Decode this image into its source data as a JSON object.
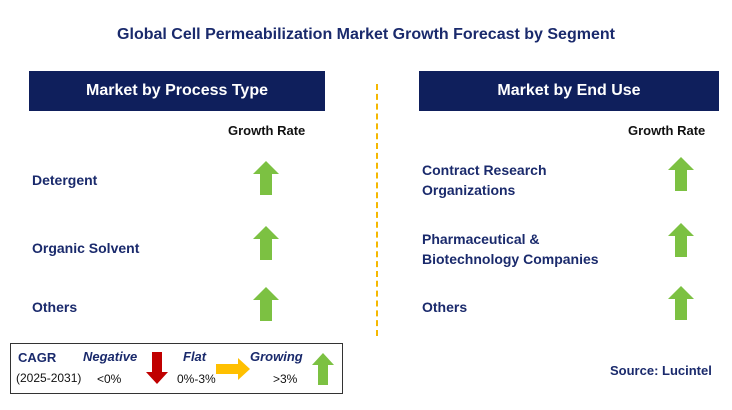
{
  "title": "Global Cell Permeabilization Market Growth Forecast by Segment",
  "colors": {
    "header_bg": "#0f1f5c",
    "text": "#1a2a6c",
    "up_arrow": "#7cc142",
    "down_arrow": "#c00000",
    "flat_arrow": "#ffc000",
    "divider": "#f5b800"
  },
  "left_panel": {
    "header": "Market by Process Type",
    "growth_label": "Growth Rate",
    "rows": [
      {
        "label": "Detergent",
        "trend": "growing"
      },
      {
        "label": "Organic Solvent",
        "trend": "growing"
      },
      {
        "label": "Others",
        "trend": "growing"
      }
    ]
  },
  "right_panel": {
    "header": "Market by End Use",
    "growth_label": "Growth Rate",
    "rows": [
      {
        "label_line1": "Contract Research",
        "label_line2": "Organizations",
        "trend": "growing"
      },
      {
        "label_line1": "Pharmaceutical &",
        "label_line2": "Biotechnology Companies",
        "trend": "growing"
      },
      {
        "label_line1": "Others",
        "label_line2": "",
        "trend": "growing"
      }
    ]
  },
  "legend": {
    "cagr_label": "CAGR",
    "period": "(2025-2031)",
    "negative_label": "Negative",
    "negative_range": "<0%",
    "flat_label": "Flat",
    "flat_range": "0%-3%",
    "growing_label": "Growing",
    "growing_range": ">3%"
  },
  "source": "Source: Lucintel"
}
